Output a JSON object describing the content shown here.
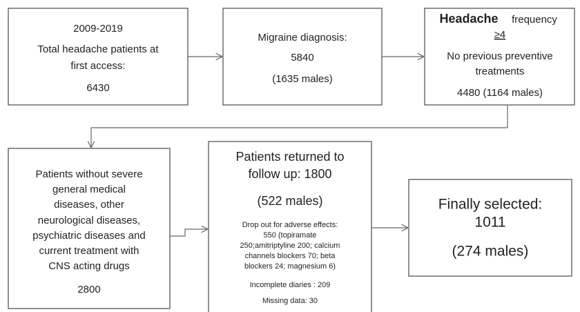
{
  "nodes": [
    {
      "lines": [
        "2009-2019",
        "Total headache patients at",
        "first access:",
        "6430"
      ]
    },
    {
      "lines": [
        "Migraine diagnosis:",
        "5840",
        "(1635 males)"
      ]
    },
    {
      "lines": [
        "Headache",
        "frequency",
        "≥4",
        "No previous preventive",
        "treatments",
        "4480 (1164 males)"
      ]
    },
    {
      "lines": [
        "Patients without severe",
        "general medical",
        "diseases, other",
        "neurological  diseases,",
        "psychiatric diseases and",
        "current treatment with",
        "CNS acting drugs",
        "2800"
      ]
    },
    {
      "lines": [
        "Patients returned to",
        "follow up: 1800",
        "(522 males)",
        "Drop out for adverse effects:",
        "550 (topiramate",
        "250;amitriptyline  200; calcium",
        "channels blockers 70; beta",
        "blockers 24; magnesium 6)",
        "Incomplete diaries : 209",
        "Missing data: 30"
      ]
    },
    {
      "lines": [
        "Finally selected:",
        "1011",
        "(274 males)"
      ]
    }
  ]
}
